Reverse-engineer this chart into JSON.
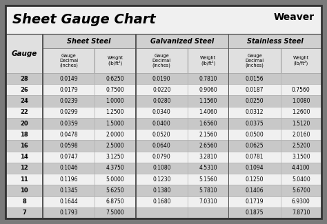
{
  "title": "Sheet Gauge Chart",
  "bg_outer": "#7a7a7a",
  "bg_white": "#ffffff",
  "bg_title": "#ffffff",
  "bg_header_group": "#d0d0d0",
  "bg_header_sub": "#e0e0e0",
  "bg_row_dark": "#c8c8c8",
  "bg_row_light": "#f0f0f0",
  "border_color": "#555555",
  "gauges": [
    28,
    26,
    24,
    22,
    20,
    18,
    16,
    14,
    12,
    11,
    10,
    8,
    7
  ],
  "sheet_steel_decimal": [
    "0.0149",
    "0.0179",
    "0.0239",
    "0.0299",
    "0.0359",
    "0.0478",
    "0.0598",
    "0.0747",
    "0.1046",
    "0.1196",
    "0.1345",
    "0.1644",
    "0.1793"
  ],
  "sheet_steel_weight": [
    "0.6250",
    "0.7500",
    "1.0000",
    "1.2500",
    "1.5000",
    "2.0000",
    "2.5000",
    "3.1250",
    "4.3750",
    "5.0000",
    "5.6250",
    "6.8750",
    "7.5000"
  ],
  "galvanized_decimal": [
    "0.0190",
    "0.0220",
    "0.0280",
    "0.0340",
    "0.0400",
    "0.0520",
    "0.0640",
    "0.0790",
    "0.1080",
    "0.1230",
    "0.1380",
    "0.1680",
    ""
  ],
  "galvanized_weight": [
    "0.7810",
    "0.9060",
    "1.1560",
    "1.4060",
    "1.6560",
    "2.1560",
    "2.6560",
    "3.2810",
    "4.5310",
    "5.1560",
    "5.7810",
    "7.0310",
    ""
  ],
  "stainless_decimal": [
    "0.0156",
    "0.0187",
    "0.0250",
    "0.0312",
    "0.0375",
    "0.0500",
    "0.0625",
    "0.0781",
    "0.1094",
    "0.1250",
    "0.1406",
    "0.1719",
    "0.1875"
  ],
  "stainless_weight": [
    "",
    "0.7560",
    "1.0080",
    "1.2600",
    "1.5120",
    "2.0160",
    "2.5200",
    "3.1500",
    "4.4100",
    "5.0400",
    "5.6700",
    "6.9300",
    "7.8710"
  ],
  "figw": 4.74,
  "figh": 3.25,
  "dpi": 100
}
